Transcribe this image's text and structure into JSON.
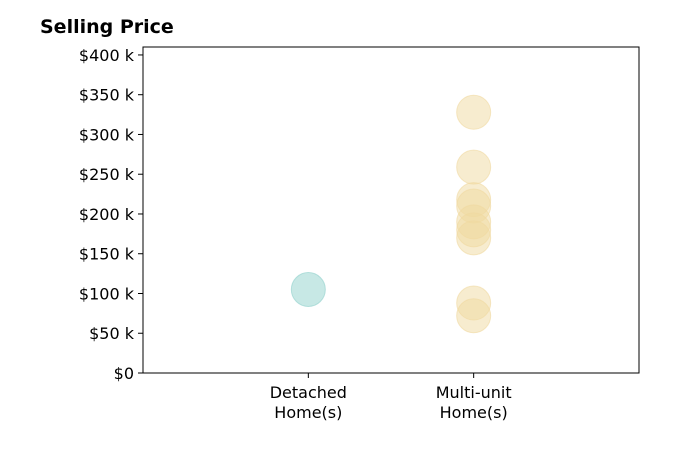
{
  "chart_data": {
    "type": "scatter",
    "title": "Selling Price",
    "xlabel": "",
    "ylabel": "",
    "categories": [
      "Detached\nHome(s)",
      "Multi-unit\nHome(s)"
    ],
    "ylim": [
      0,
      410000
    ],
    "yticks": [
      0,
      50000,
      100000,
      150000,
      200000,
      250000,
      300000,
      350000,
      400000
    ],
    "ytick_labels": [
      "$0",
      "$50 k",
      "$100 k",
      "$150 k",
      "$200 k",
      "$250 k",
      "$300 k",
      "$350 k",
      "$400 k"
    ],
    "grid": false,
    "series": [
      {
        "category": "Detached\nHome(s)",
        "color": "#8fd1cb",
        "values": [
          105000
        ]
      },
      {
        "category": "Multi-unit\nHome(s)",
        "color": "#f0d9a0",
        "values": [
          328000,
          259000,
          218000,
          210000,
          190000,
          180000,
          170000,
          88000,
          72000
        ]
      }
    ]
  }
}
